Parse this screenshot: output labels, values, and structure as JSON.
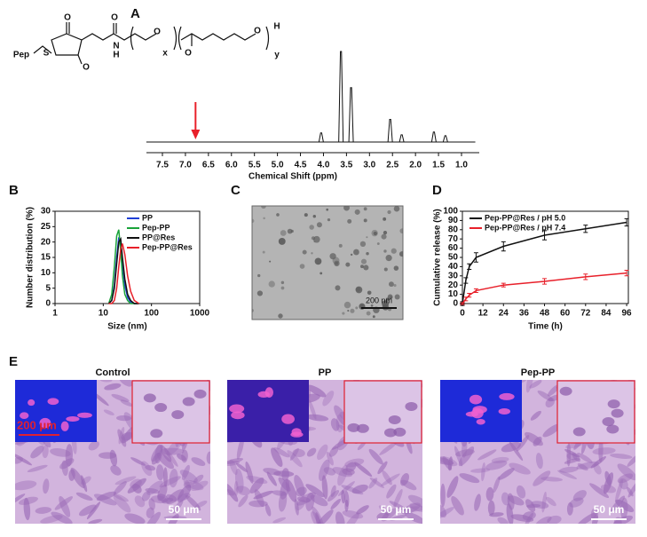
{
  "panel_labels": [
    "A",
    "B",
    "C",
    "D",
    "E"
  ],
  "structure": {
    "labels": [
      "Pep",
      "S",
      "O",
      "O",
      "O",
      "N",
      "H",
      "O",
      "x",
      "O",
      "O",
      "H",
      "y"
    ]
  },
  "chart_data": [
    {
      "type": "spectrum",
      "xlabel": "Chemical Shift (ppm)",
      "peaks": {
        "x": [
          4.05,
          3.62,
          3.4,
          2.55,
          2.3,
          1.6,
          1.35
        ],
        "values": [
          10,
          100,
          60,
          25,
          8,
          11,
          7
        ]
      },
      "xlim": [
        7.85,
        0.7
      ],
      "ylim": [
        0,
        100
      ],
      "xticks": [
        7.5,
        {
          "value": 7,
          "label": "7.0"
        },
        6.5,
        {
          "value": 6,
          "label": "6.0"
        },
        5.5,
        {
          "value": 5,
          "label": "5.0"
        },
        4.5,
        {
          "value": 4,
          "label": "4.0"
        },
        3.5,
        {
          "value": 3,
          "label": "3.0"
        },
        2.5,
        {
          "value": 2,
          "label": "2.0"
        },
        1.5,
        {
          "value": 1,
          "label": "1.0"
        }
      ],
      "color": "#111111",
      "arrow_x": 6.78,
      "arrow_color": "#e8202a"
    },
    {
      "type": "line",
      "xlabel": "Size (nm)",
      "ylabel": "Number distribution (%)",
      "log_x": true,
      "xlim": [
        1,
        1000
      ],
      "xticks": [
        1,
        10,
        100,
        1000
      ],
      "ylim": [
        0,
        30
      ],
      "yticks": [
        0,
        5,
        10,
        15,
        20,
        25,
        30
      ],
      "legend": "top-right",
      "x": [
        13,
        15,
        17,
        19,
        21,
        23,
        25,
        28,
        32,
        37,
        44,
        55
      ],
      "series": [
        {
          "name": "PP",
          "color": "#1f3fd6",
          "values": [
            0,
            1,
            6,
            15,
            21.5,
            20,
            13,
            6,
            2,
            0.5,
            0,
            0
          ]
        },
        {
          "name": "Pep-PP",
          "color": "#1aa33a",
          "values": [
            0,
            3,
            12,
            22,
            24,
            17,
            9,
            3,
            1,
            0,
            0,
            0
          ]
        },
        {
          "name": "PP@Res",
          "color": "#111111",
          "values": [
            0,
            1,
            5,
            13,
            20,
            21,
            15,
            8,
            3,
            1,
            0,
            0
          ]
        },
        {
          "name": "Pep-PP@Res",
          "color": "#e8202a",
          "values": [
            0,
            0,
            1,
            5,
            12,
            17.5,
            19.5,
            16,
            9,
            4,
            1,
            0
          ]
        }
      ]
    },
    {
      "type": "errorbar",
      "xlabel": "Time (h)",
      "ylabel": "Cumulative release (%)",
      "xlim": [
        0,
        97
      ],
      "xticks": [
        0,
        12,
        24,
        36,
        48,
        60,
        72,
        84,
        96
      ],
      "ylim": [
        0,
        100
      ],
      "yticks": [
        0,
        10,
        20,
        30,
        40,
        50,
        60,
        70,
        80,
        90,
        100
      ],
      "legend": "top-left",
      "x": [
        0,
        2,
        4,
        8,
        24,
        48,
        72,
        96
      ],
      "series": [
        {
          "name": "Pep-PP@Res / pH 5.0",
          "color": "#111111",
          "values": [
            0,
            25,
            40,
            50,
            62,
            74,
            81,
            88
          ],
          "errors": [
            2,
            3,
            3,
            5,
            5,
            5,
            4,
            4
          ]
        },
        {
          "name": "Pep-PP@Res / pH 7.4",
          "color": "#e8202a",
          "values": [
            0,
            5,
            9,
            14,
            20,
            24,
            29,
            33
          ],
          "errors": [
            1,
            2,
            2,
            2,
            2,
            3,
            3,
            3
          ]
        }
      ]
    }
  ],
  "tem": {
    "scale_label": "200 nm"
  },
  "micrographs": [
    {
      "title": "Control",
      "inset_scale": "200 μm",
      "scale": "50 μm"
    },
    {
      "title": "PP",
      "scale": "50 μm"
    },
    {
      "title": "Pep-PP",
      "scale": "50 μm"
    }
  ]
}
